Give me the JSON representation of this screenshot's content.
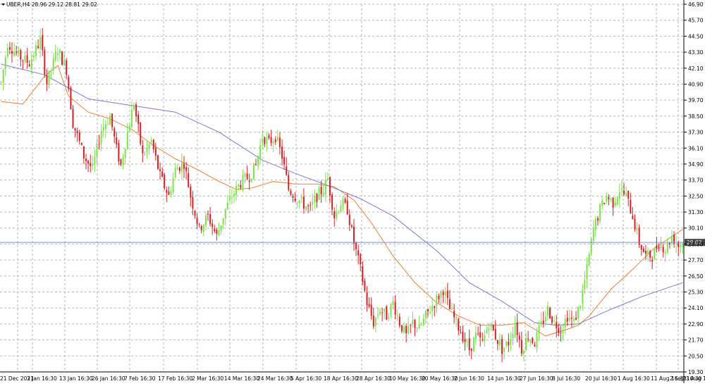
{
  "chart_data": {
    "type": "candlestick",
    "title": "UBER,H4  28.96 29.12 28.81 29.02",
    "symbol": "UBER,H4",
    "ohlc_last": {
      "open": 28.96,
      "high": 29.12,
      "low": 28.81,
      "close": 29.02
    },
    "current_price_label": "29.02",
    "current_price": 29.02,
    "y_ticks": [
      "46.90",
      "45.70",
      "44.50",
      "43.30",
      "42.10",
      "40.90",
      "39.70",
      "38.50",
      "37.30",
      "36.10",
      "34.90",
      "33.70",
      "32.50",
      "31.30",
      "30.10",
      "28.90",
      "27.70",
      "26.50",
      "25.30",
      "24.10",
      "22.90",
      "21.70",
      "20.50",
      "19.30"
    ],
    "ylim": [
      19.3,
      46.9
    ],
    "x_ticks": [
      "21 Dec 2021",
      "3 Jan 16:30",
      "13 Jan 16:30",
      "26 Jan 16:30",
      "7 Feb 16:30",
      "17 Feb 16:30",
      "2 Mar 16:30",
      "14 Mar 16:30",
      "24 Mar 16:30",
      "5 Apr 16:30",
      "18 Apr 16:30",
      "28 Apr 16:30",
      "10 May 16:30",
      "20 May 16:30",
      "2 Jun 16:30",
      "14 Jun 16:30",
      "27 Jun 16:30",
      "8 Jul 16:30",
      "20 Jul 16:30",
      "1 Aug 16:30",
      "11 Aug 16:30",
      "23 Aug 16:30",
      "2 Sep 16:30"
    ],
    "price_path": [
      [
        0,
        41.0
      ],
      [
        3,
        44.0
      ],
      [
        8,
        43.0
      ],
      [
        13,
        42.5
      ],
      [
        18,
        44.2
      ],
      [
        21,
        41.0
      ],
      [
        26,
        43.5
      ],
      [
        30,
        42.0
      ],
      [
        33,
        38.0
      ],
      [
        38,
        35.5
      ],
      [
        42,
        34.5
      ],
      [
        46,
        37.5
      ],
      [
        50,
        38.5
      ],
      [
        53,
        36.0
      ],
      [
        55,
        34.8
      ],
      [
        58,
        37.3
      ],
      [
        61,
        39.5
      ],
      [
        65,
        35.5
      ],
      [
        69,
        36.6
      ],
      [
        73,
        34.0
      ],
      [
        77,
        32.5
      ],
      [
        80,
        34.5
      ],
      [
        84,
        35.0
      ],
      [
        87,
        32.5
      ],
      [
        91,
        30.0
      ],
      [
        95,
        31.0
      ],
      [
        99,
        29.5
      ],
      [
        103,
        31.5
      ],
      [
        106,
        32.5
      ],
      [
        110,
        33.5
      ],
      [
        114,
        34.0
      ],
      [
        117,
        34.8
      ],
      [
        120,
        37.0
      ],
      [
        123,
        36.5
      ],
      [
        126,
        37.0
      ],
      [
        129,
        35.5
      ],
      [
        132,
        33.0
      ],
      [
        135,
        32.5
      ],
      [
        138,
        32.0
      ],
      [
        142,
        31.5
      ],
      [
        145,
        32.5
      ],
      [
        148,
        33.0
      ],
      [
        150,
        33.8
      ],
      [
        153,
        31.0
      ],
      [
        156,
        32.0
      ],
      [
        159,
        31.5
      ],
      [
        162,
        29.0
      ],
      [
        165,
        27.0
      ],
      [
        168,
        24.5
      ],
      [
        171,
        23.0
      ],
      [
        174,
        24.0
      ],
      [
        177,
        23.5
      ],
      [
        180,
        24.5
      ],
      [
        183,
        23.0
      ],
      [
        186,
        22.0
      ],
      [
        189,
        23.0
      ],
      [
        192,
        22.5
      ],
      [
        195,
        23.5
      ],
      [
        199,
        24.5
      ],
      [
        203,
        25.5
      ],
      [
        206,
        24.0
      ],
      [
        209,
        23.0
      ],
      [
        212,
        22.0
      ],
      [
        215,
        21.0
      ],
      [
        218,
        22.0
      ],
      [
        221,
        21.5
      ],
      [
        224,
        23.0
      ],
      [
        227,
        22.0
      ],
      [
        230,
        21.0
      ],
      [
        233,
        21.5
      ],
      [
        236,
        23.0
      ],
      [
        239,
        21.0
      ],
      [
        242,
        22.0
      ],
      [
        245,
        21.5
      ],
      [
        248,
        22.8
      ],
      [
        251,
        24.0
      ],
      [
        254,
        23.0
      ],
      [
        257,
        22.5
      ],
      [
        260,
        23.5
      ],
      [
        263,
        23.0
      ],
      [
        266,
        24.5
      ],
      [
        269,
        27.0
      ],
      [
        272,
        30.0
      ],
      [
        275,
        31.5
      ],
      [
        278,
        32.5
      ],
      [
        281,
        32.0
      ],
      [
        284,
        33.0
      ],
      [
        287,
        32.5
      ],
      [
        290,
        31.0
      ],
      [
        293,
        29.0
      ],
      [
        296,
        28.0
      ],
      [
        299,
        28.0
      ],
      [
        302,
        29.0
      ],
      [
        305,
        28.5
      ],
      [
        308,
        29.5
      ],
      [
        311,
        28.8
      ],
      [
        313,
        29.02
      ]
    ],
    "series": [
      {
        "name": "",
        "color": "#f08030",
        "values": [
          [
            0,
            39.6
          ],
          [
            10,
            39.4
          ],
          [
            20,
            41.5
          ],
          [
            26,
            42.3
          ],
          [
            31,
            40.0
          ],
          [
            40,
            38.8
          ],
          [
            50,
            38.3
          ],
          [
            60,
            37.5
          ],
          [
            70,
            36.3
          ],
          [
            80,
            35.3
          ],
          [
            90,
            34.5
          ],
          [
            100,
            33.6
          ],
          [
            108,
            33.0
          ],
          [
            115,
            33.1
          ],
          [
            125,
            33.6
          ],
          [
            135,
            33.4
          ],
          [
            145,
            33.4
          ],
          [
            153,
            33.2
          ],
          [
            162,
            32.2
          ],
          [
            170,
            30.5
          ],
          [
            180,
            28.0
          ],
          [
            190,
            26.0
          ],
          [
            200,
            24.5
          ],
          [
            210,
            23.5
          ],
          [
            220,
            22.8
          ],
          [
            230,
            22.8
          ],
          [
            240,
            23.0
          ],
          [
            250,
            22.0
          ],
          [
            260,
            22.5
          ],
          [
            265,
            22.8
          ],
          [
            270,
            23.5
          ],
          [
            280,
            25.5
          ],
          [
            290,
            27.0
          ],
          [
            300,
            28.6
          ],
          [
            313,
            30.0
          ]
        ]
      },
      {
        "name": "",
        "color": "#7a7ad0",
        "values": [
          [
            0,
            42.4
          ],
          [
            20,
            41.6
          ],
          [
            40,
            39.8
          ],
          [
            60,
            39.3
          ],
          [
            80,
            38.8
          ],
          [
            100,
            37.3
          ],
          [
            120,
            35.2
          ],
          [
            135,
            34.2
          ],
          [
            150,
            33.3
          ],
          [
            165,
            32.3
          ],
          [
            180,
            31.0
          ],
          [
            200,
            28.4
          ],
          [
            215,
            26.0
          ],
          [
            230,
            24.6
          ],
          [
            245,
            23.0
          ],
          [
            255,
            22.8
          ],
          [
            265,
            22.9
          ],
          [
            280,
            24.0
          ],
          [
            295,
            25.0
          ],
          [
            313,
            26.0
          ]
        ]
      }
    ],
    "colors": {
      "up": "#7ae34a",
      "down": "#d81f26",
      "grid": "#b6b6b6",
      "current_line": "#7f8fcf",
      "price_label_bg": "#444444"
    }
  }
}
